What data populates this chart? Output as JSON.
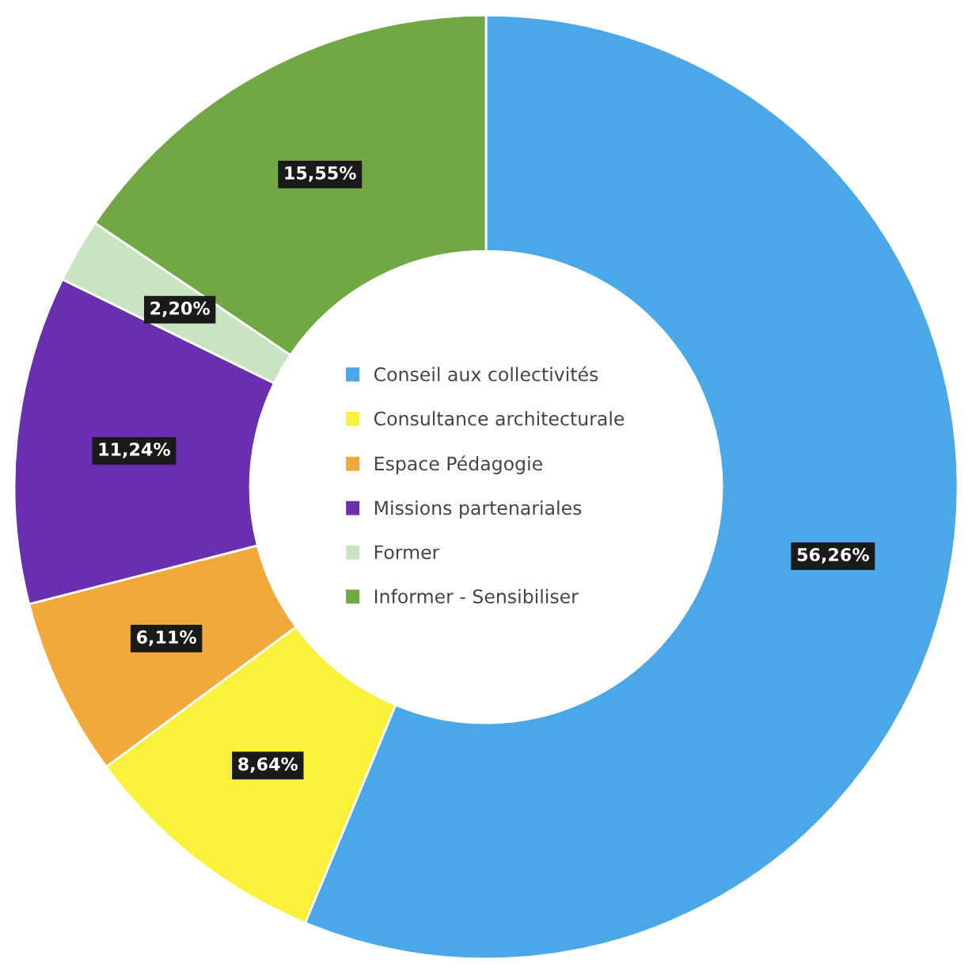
{
  "chart_data": {
    "type": "donut",
    "categories": [
      "Conseil aux collectivités",
      "Consultance architecturale",
      "Espace Pédagogie",
      "Missions partenariales",
      "Former",
      "Informer - Sensibiliser"
    ],
    "values": [
      56.26,
      8.64,
      6.11,
      11.24,
      2.2,
      15.55
    ],
    "value_labels": [
      "56,26%",
      "8,64%",
      "6,11%",
      "11,24%",
      "2,20%",
      "15,55%"
    ],
    "colors": [
      "#4aa8e8",
      "#f9f13a",
      "#f2a93b",
      "#6a2fb0",
      "#c9e4c0",
      "#72a844"
    ],
    "legend": "center"
  }
}
